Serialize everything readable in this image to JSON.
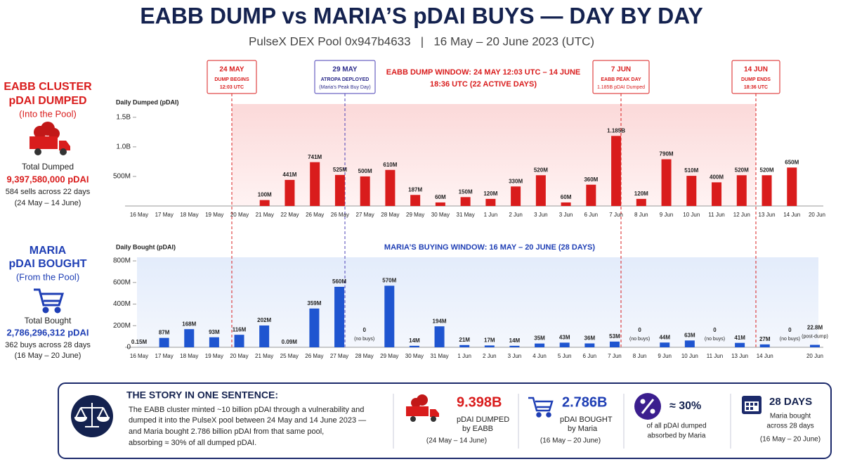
{
  "header": {
    "title": "EABB DUMP vs MARIA’S pDAI BUYS — DAY BY DAY",
    "subtitle": "PulseX DEX Pool 0x947b4633   |   16 May – 20 June 2023 (UTC)"
  },
  "panels": [
    {
      "title": [
        "EABB CLUSTER",
        "pDAI DUMPED"
      ],
      "sub": "(Into the Pool)",
      "total_label": "Total Dumped",
      "total": "9,397,580,000 pDAI",
      "detail": "584 sells across 22 days",
      "range": "(24 May – 14 June)"
    },
    {
      "title": [
        "MARIA",
        "pDAI BOUGHT"
      ],
      "sub": "(From the Pool)",
      "total_label": "Total Bought",
      "total": "2,786,296,312 pDAI",
      "detail": "362 buys across 28 days",
      "range": "(16 May – 20 June)"
    }
  ],
  "chart_data": [
    {
      "type": "bar",
      "y_label": "Daily Dumped (pDAI)",
      "color": "#d91c1c",
      "categories": [
        "16 May",
        "17 May",
        "18 May",
        "19 May",
        "20 May",
        "21 May",
        "22 May",
        "26 May",
        "26 May",
        "27 May",
        "28 May",
        "29 May",
        "30 May",
        "31 May",
        "1 Jun",
        "2 Jun",
        "3 Jun",
        "3 Jun",
        "6 Jun",
        "7 Jun",
        "8 Jun",
        "9 Jun",
        "10 Jun",
        "11 Jun",
        "12 Jun",
        "13 Jun",
        "14 Jun",
        "20 Jun"
      ],
      "values": [
        null,
        null,
        null,
        null,
        null,
        100000000,
        441000000,
        741000000,
        525000000,
        500000000,
        610000000,
        187000000,
        60000000,
        150000000,
        120000000,
        330000000,
        520000000,
        60000000,
        360000000,
        1185000000,
        120000000,
        790000000,
        510000000,
        400000000,
        520000000,
        520000000,
        650000000,
        null
      ],
      "value_labels": [
        null,
        null,
        null,
        null,
        null,
        "100M",
        "441M",
        "741M",
        "525M",
        "500M",
        "610M",
        "187M",
        "60M",
        "150M",
        "120M",
        "330M",
        "520M",
        "60M",
        "360M",
        "1.185B",
        "120M",
        "790M",
        "510M",
        "400M",
        "520M",
        "520M",
        "650M",
        null
      ],
      "ylim": [
        0,
        1700000000
      ],
      "yticks": [
        {
          "value": 500000000,
          "label": "500M"
        },
        {
          "value": 1000000000,
          "label": "1.0B"
        },
        {
          "value": 1500000000,
          "label": "1.5B"
        }
      ],
      "window_label": [
        "EABB DUMP WINDOW: 24 MAY 12:03 UTC – 14 JUNE",
        "18:36 UTC (22 ACTIVE DAYS)"
      ],
      "annotations": [
        [
          "24 MAY",
          "DUMP BEGINS",
          "12:03 UTC"
        ],
        [
          "29 MAY",
          "ATROPA DEPLOYED",
          "(Maria’s Peak Buy Day)"
        ],
        [
          "7 JUN",
          "EABB PEAK DAY",
          "1.185B pDAI Dumped"
        ],
        [
          "14 JUN",
          "DUMP ENDS",
          "18:36 UTC"
        ]
      ]
    },
    {
      "type": "bar",
      "y_label": "Daily Bought (pDAI)",
      "color": "#1f55d0",
      "categories": [
        "16 May",
        "17 May",
        "18 May",
        "19 May",
        "20 May",
        "21 May",
        "25 May",
        "26 May",
        "27 May",
        "28 May",
        "29 May",
        "30 May",
        "31 May",
        "1 Jun",
        "2 Jun",
        "3 Jun",
        "4 Jun",
        "5 Jun",
        "6 Jun",
        "7 Jun",
        "8 Jun",
        "9 Jun",
        "10 Jun",
        "11 Jun",
        "13 Jun",
        "14 Jun",
        null,
        "20 Jun"
      ],
      "values": [
        150000,
        87000000,
        168000000,
        93000000,
        116000000,
        202000000,
        90000,
        359000000,
        560000000,
        0,
        570000000,
        14000000,
        194000000,
        21000000,
        17000000,
        14000000,
        35000000,
        43000000,
        36000000,
        53000000,
        0,
        44000000,
        63000000,
        0,
        41000000,
        27000000,
        0,
        22800000
      ],
      "value_labels": [
        "0.15M",
        "87M",
        "168M",
        "93M",
        "116M",
        "202M",
        "0.09M",
        "359M",
        "560M",
        "0",
        "570M",
        "14M",
        "194M",
        "21M",
        "17M",
        "14M",
        "35M",
        "43M",
        "36M",
        "53M",
        "0",
        "44M",
        "63M",
        "0",
        "41M",
        "27M",
        "0",
        "22.8M"
      ],
      "value_notes": [
        null,
        null,
        null,
        null,
        null,
        null,
        null,
        null,
        null,
        "(no buys)",
        null,
        null,
        null,
        null,
        null,
        null,
        null,
        null,
        null,
        null,
        "(no buys)",
        null,
        null,
        "(no buys)",
        null,
        null,
        "(no buys)",
        "(post-dump)"
      ],
      "ylim": [
        0,
        820000000
      ],
      "yticks": [
        0,
        {
          "value": 200000000,
          "label": "200M"
        },
        {
          "value": 400000000,
          "label": "400M"
        },
        {
          "value": 600000000,
          "label": "600M"
        },
        {
          "value": 800000000,
          "label": "800M"
        }
      ],
      "window_label": "MARIA’S BUYING WINDOW: 16 MAY – 20 JUNE (28 DAYS)"
    }
  ],
  "story": {
    "title": "THE STORY IN ONE SENTENCE:",
    "lines": [
      "The EABB cluster minted ~10 billion pDAI through a vulnerability and",
      "dumped it into the PulseX pool between 24 May and 14 June 2023 —",
      "and Maria bought 2.786 billion pDAI from that same pool,",
      "absorbing ≈ 30% of all dumped pDAI."
    ],
    "stats": [
      {
        "value": "9.398B",
        "lines": [
          "pDAI DUMPED",
          "by EABB"
        ],
        "range": "(24 May – 14 June)"
      },
      {
        "value": "2.786B",
        "lines": [
          "pDAI BOUGHT",
          "by Maria"
        ],
        "range": "(16 May – 20 June)"
      },
      {
        "value": "≈ 30%",
        "lines": [
          "of all pDAI dumped",
          "absorbed by Maria"
        ]
      },
      {
        "value": "28 DAYS",
        "lines": [
          "Maria bought",
          "across 28 days"
        ],
        "range": "(16 May – 20 June)"
      }
    ]
  }
}
